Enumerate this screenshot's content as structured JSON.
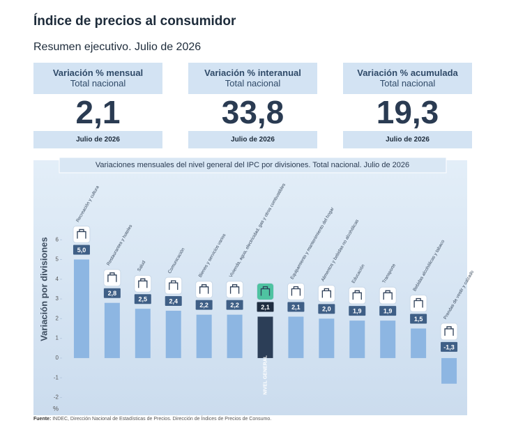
{
  "header": {
    "title": "Índice de precios al consumidor",
    "subtitle": "Resumen ejecutivo. Julio de 2026"
  },
  "cards": [
    {
      "title": "Variación % mensual",
      "subtitle": "Total nacional",
      "value": "2,1",
      "date": "Julio de 2026"
    },
    {
      "title": "Variación % interanual",
      "subtitle": "Total nacional",
      "value": "33,8",
      "date": "Julio de 2026"
    },
    {
      "title": "Variación % acumulada",
      "subtitle": "Total nacional",
      "value": "19,3",
      "date": "Julio de 2026"
    }
  ],
  "chart_data": {
    "type": "bar",
    "title": "Variaciones mensuales del nivel general del IPC por divisiones. Total nacional. Julio de 2026",
    "y_label": "Variación por divisiones",
    "y_unit": "%",
    "categories": [
      "Recreación y cultura",
      "Restaurantes y hoteles",
      "Salud",
      "Comunicación",
      "Bienes y servicios varios",
      "Vivienda, agua, electricidad, gas y otros combustibles",
      "NIVEL GENERAL",
      "Equipamiento y mantenimiento del hogar",
      "Alimentos y bebidas no alcohólicas",
      "Educación",
      "Transporte",
      "Bebidas alcohólicas y tabaco",
      "Prendas de vestir y calzado"
    ],
    "values": [
      5.0,
      2.8,
      2.5,
      2.4,
      2.2,
      2.2,
      2.1,
      2.1,
      2.0,
      1.9,
      1.9,
      1.5,
      -1.3
    ],
    "value_labels": [
      "5,0",
      "2,8",
      "2,5",
      "2,4",
      "2,2",
      "2,2",
      "2,1",
      "2,1",
      "2,0",
      "1,9",
      "1,9",
      "1,5",
      "-1,3"
    ],
    "colors": [
      "#8db6e2",
      "#8db6e2",
      "#8db6e2",
      "#8db6e2",
      "#8db6e2",
      "#8db6e2",
      "#2c3e57",
      "#8db6e2",
      "#8db6e2",
      "#8db6e2",
      "#8db6e2",
      "#8db6e2",
      "#8db6e2"
    ],
    "ylim": [
      -2.9,
      6.5
    ],
    "yticks": [
      6,
      5,
      4,
      3,
      2,
      1,
      0,
      -1,
      -2
    ]
  },
  "source": {
    "label": "Fuente:",
    "text": "INDEC, Dirección Nacional de Estadísticas de Precios. Dirección de Índices de Precios de Consumo."
  }
}
